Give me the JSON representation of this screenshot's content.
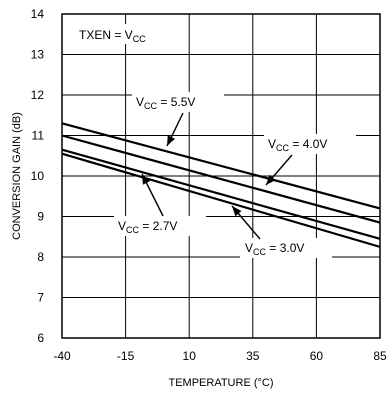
{
  "chart_data": {
    "type": "line",
    "title": "",
    "xlabel": "TEMPERATURE (°C)",
    "ylabel": "CONVERSION GAIN (dB)",
    "xlim": [
      -40,
      85
    ],
    "ylim": [
      6,
      14
    ],
    "x_ticks": [
      "-40",
      "-15",
      "10",
      "35",
      "60",
      "85"
    ],
    "y_ticks": [
      "6",
      "7",
      "8",
      "9",
      "10",
      "11",
      "12",
      "13",
      "14"
    ],
    "grid": true,
    "condition_label": {
      "pre": "TXEN = V",
      "sub": "CC",
      "post": ""
    },
    "series": [
      {
        "x": [
          -40,
          85
        ],
        "y": [
          11.3,
          9.2
        ]
      },
      {
        "x": [
          -40,
          85
        ],
        "y": [
          11.0,
          8.85
        ]
      },
      {
        "x": [
          -40,
          85
        ],
        "y": [
          10.65,
          8.45
        ]
      },
      {
        "x": [
          -40,
          85
        ],
        "y": [
          10.55,
          8.25
        ]
      }
    ],
    "annotations": [
      {
        "pre": "V",
        "sub": "CC",
        "post": " = 5.5V"
      },
      {
        "pre": "V",
        "sub": "CC",
        "post": " = 4.0V"
      },
      {
        "pre": "V",
        "sub": "CC",
        "post": " = 2.7V"
      },
      {
        "pre": "V",
        "sub": "CC",
        "post": " = 3.0V"
      }
    ]
  }
}
